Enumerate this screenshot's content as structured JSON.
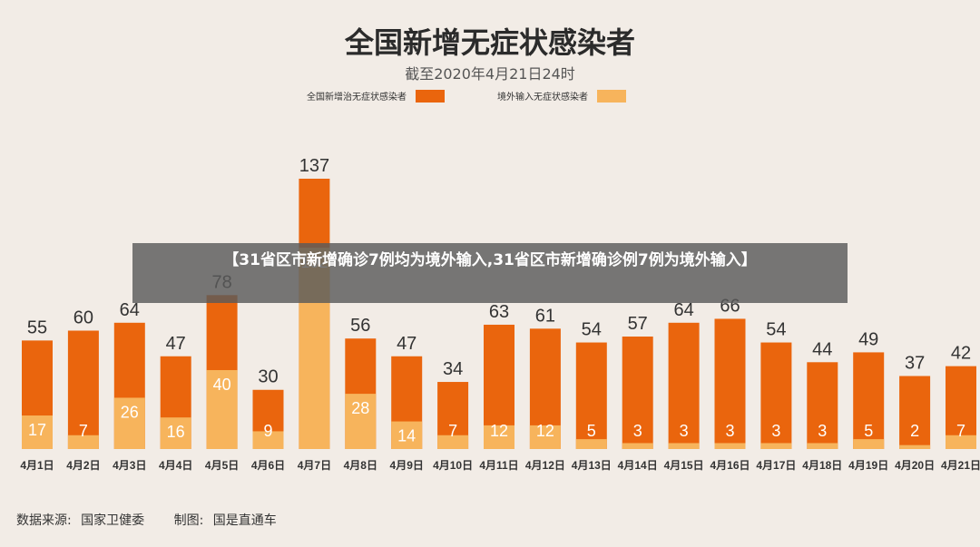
{
  "chart_data": {
    "type": "bar",
    "title": "全国新增无症状感染者",
    "subtitle": "截至2020年4月21日24时",
    "categories": [
      "4月1日",
      "4月2日",
      "4月3日",
      "4月4日",
      "4月5日",
      "4月6日",
      "4月7日",
      "4月8日",
      "4月9日",
      "4月10日",
      "4月11日",
      "4月12日",
      "4月13日",
      "4月14日",
      "4月15日",
      "4月16日",
      "4月17日",
      "4月18日",
      "4月19日",
      "4月20日",
      "4月21日"
    ],
    "totals": [
      55,
      60,
      64,
      47,
      78,
      30,
      137,
      56,
      47,
      34,
      63,
      61,
      54,
      57,
      64,
      66,
      54,
      44,
      49,
      37,
      42
    ],
    "series": [
      {
        "name": "境外输入无症状感染者",
        "color": "#f7b45c",
        "values": [
          17,
          7,
          26,
          16,
          40,
          9,
          102,
          28,
          14,
          7,
          12,
          12,
          5,
          3,
          3,
          3,
          3,
          3,
          5,
          2,
          7
        ]
      }
    ],
    "legend": {
      "total_label": "全国新增治无症状感染者",
      "total_color": "#ea650d",
      "imported_label": "境外输入无症状感染者",
      "imported_color": "#f7b45c",
      "placement": "top-center"
    },
    "ylim": [
      0,
      140
    ],
    "grid": false
  },
  "banner": {
    "text": "【31省区市新增确诊7例均为境外输入,31省区市新增确诊例7例为境外输入】"
  },
  "footer": {
    "source_label": "数据来源:",
    "source_value": "国家卫健委",
    "maker_label": "制图:",
    "maker_value": "国是直通车"
  }
}
